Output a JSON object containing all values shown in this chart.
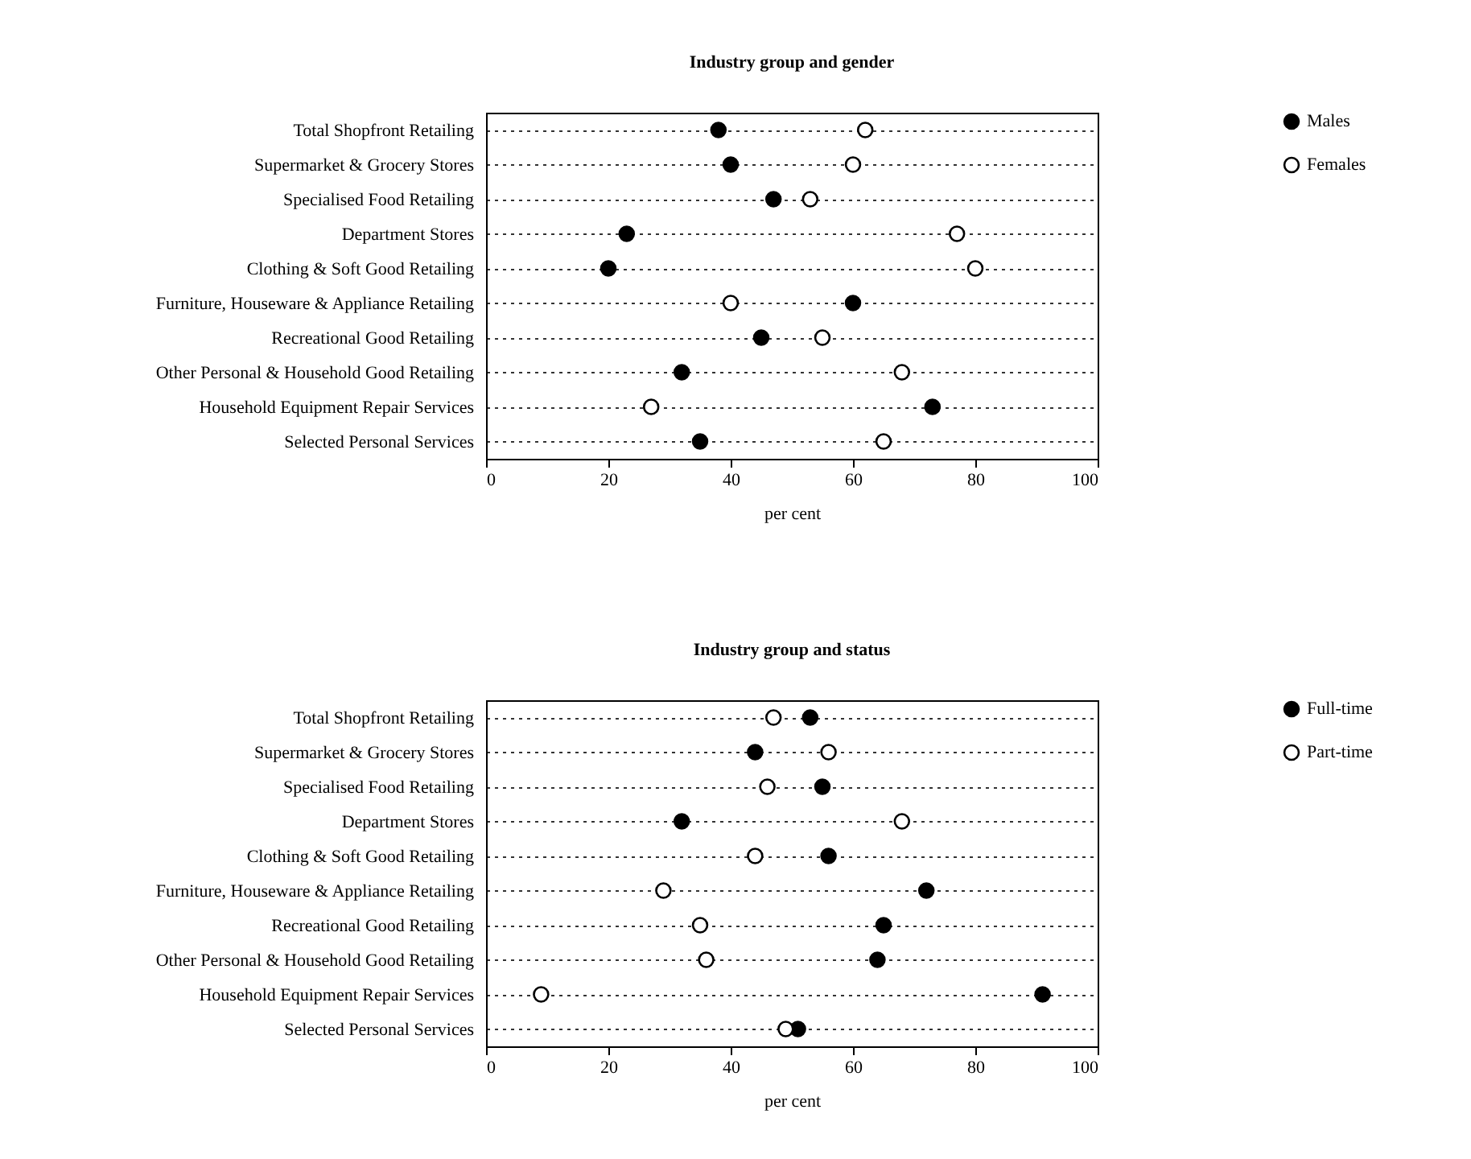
{
  "chart_data": [
    {
      "type": "scatter",
      "title": "Industry group and gender",
      "xlabel": "per cent",
      "categories": [
        "Total Shopfront Retailing",
        "Supermarket & Grocery Stores",
        "Specialised Food Retailing",
        "Department Stores",
        "Clothing & Soft Good Retailing",
        "Furniture, Houseware & Appliance Retailing",
        "Recreational Good Retailing",
        "Other Personal & Household Good Retailing",
        "Household Equipment Repair Services",
        "Selected Personal Services"
      ],
      "series": [
        {
          "name": "Males",
          "color": "#000000",
          "values": [
            38,
            40,
            47,
            23,
            20,
            60,
            45,
            32,
            73,
            35
          ]
        },
        {
          "name": "Females",
          "color": "#ffffff",
          "values": [
            62,
            60,
            53,
            77,
            80,
            40,
            55,
            68,
            27,
            65
          ]
        }
      ],
      "xlim": [
        0,
        100
      ],
      "xticks": [
        0,
        20,
        40,
        60,
        80,
        100
      ],
      "orientation": "horizontal",
      "grid": "y",
      "legend": "right",
      "marker": "circle"
    },
    {
      "type": "scatter",
      "title": "Industry group and status",
      "xlabel": "per cent",
      "categories": [
        "Total Shopfront Retailing",
        "Supermarket & Grocery Stores",
        "Specialised Food Retailing",
        "Department Stores",
        "Clothing & Soft Good Retailing",
        "Furniture, Houseware & Appliance Retailing",
        "Recreational Good Retailing",
        "Other Personal & Household Good Retailing",
        "Household Equipment Repair Services",
        "Selected Personal Services"
      ],
      "series": [
        {
          "name": "Full-time",
          "color": "#000000",
          "values": [
            53,
            44,
            55,
            32,
            56,
            72,
            65,
            64,
            91,
            51
          ]
        },
        {
          "name": "Part-time",
          "color": "#ffffff",
          "values": [
            47,
            56,
            46,
            68,
            44,
            29,
            35,
            36,
            9,
            49
          ]
        }
      ],
      "xlim": [
        0,
        100
      ],
      "xticks": [
        0,
        20,
        40,
        60,
        80,
        100
      ],
      "orientation": "horizontal",
      "grid": "y",
      "legend": "right",
      "marker": "circle"
    }
  ]
}
